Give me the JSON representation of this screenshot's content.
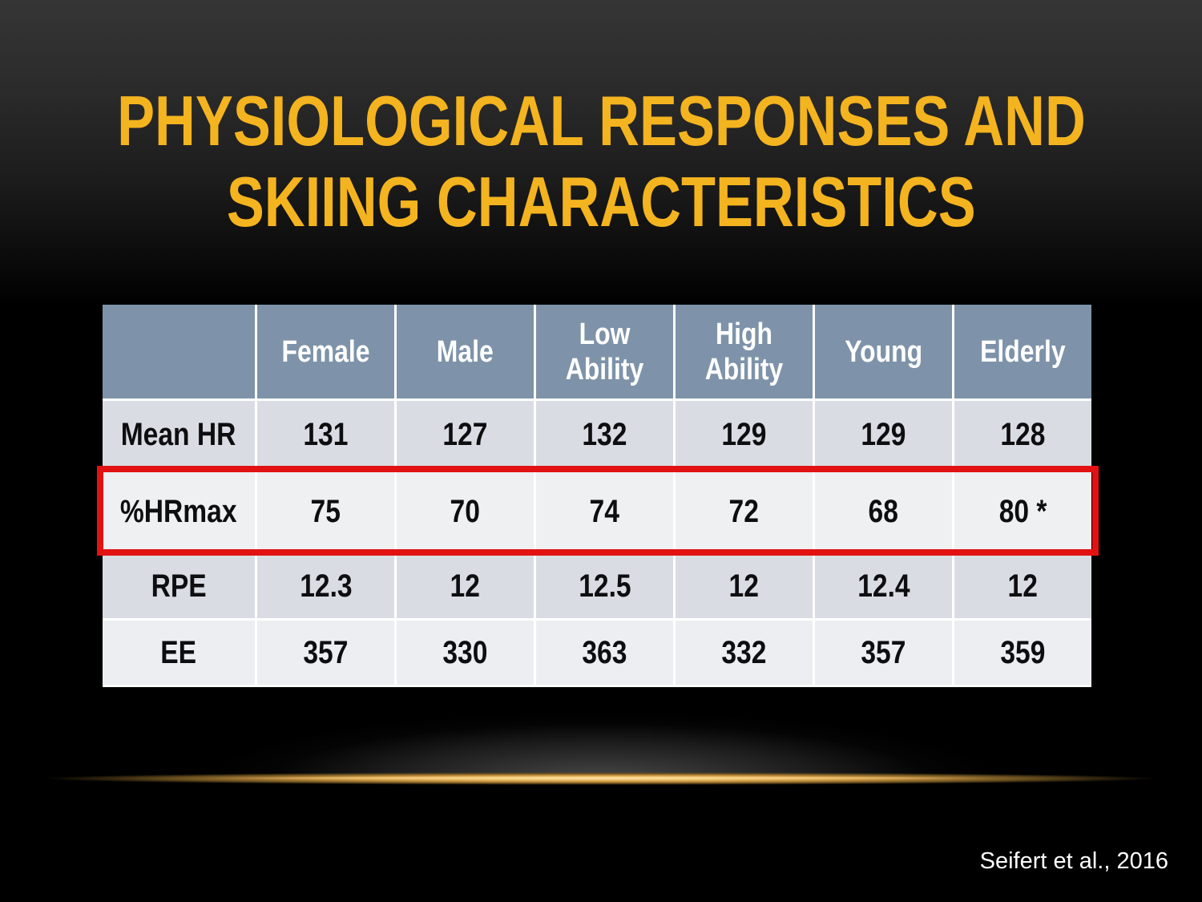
{
  "slide": {
    "title_line1": "PHYSIOLOGICAL RESPONSES AND",
    "title_line2": "SKIING CHARACTERISTICS",
    "citation": "Seifert et al., 2016"
  },
  "table": {
    "column_headers": [
      "",
      "Female",
      "Male",
      "Low Ability",
      "High Ability",
      "Young",
      "Elderly"
    ],
    "rows": [
      {
        "label": "Mean HR",
        "values": [
          "131",
          "127",
          "132",
          "129",
          "129",
          "128"
        ],
        "highlighted": false
      },
      {
        "label": "%HRmax",
        "values": [
          "75",
          "70",
          "74",
          "72",
          "68",
          "80 *"
        ],
        "highlighted": true
      },
      {
        "label": "RPE",
        "values": [
          "12.3",
          "12",
          "12.5",
          "12",
          "12.4",
          "12"
        ],
        "highlighted": false
      },
      {
        "label": "EE",
        "values": [
          "357",
          "330",
          "363",
          "332",
          "357",
          "359"
        ],
        "highlighted": false
      }
    ]
  },
  "colors": {
    "background": "#000000",
    "title_gold": "#F4B41F",
    "header_bg": "#7E93A9",
    "header_text": "#FFFFFF",
    "row_band_dark": "#D9DDE3",
    "row_band_light": "#ECEEF1",
    "highlight_row_bg": "#EEF0F2",
    "highlight_border_red": "#E31212",
    "gridline": "#FFFFFF",
    "gold_divider": "#E9B963",
    "body_text": "#0E0E10",
    "citation_text": "#FFFFFF"
  }
}
